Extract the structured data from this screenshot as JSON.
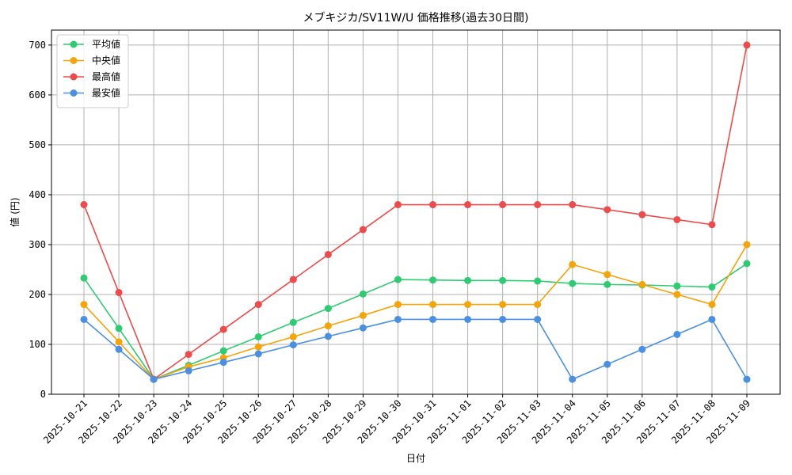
{
  "chart_data": {
    "type": "line",
    "title": "メブキジカ/SV11W/U 価格推移(過去30日間)",
    "xlabel": "日付",
    "ylabel": "値 (円)",
    "ylim": [
      0,
      730
    ],
    "yticks": [
      0,
      100,
      200,
      300,
      400,
      500,
      600,
      700
    ],
    "grid": true,
    "legend_position": "top-left",
    "categories": [
      "2025-10-21",
      "2025-10-22",
      "2025-10-23",
      "2025-10-24",
      "2025-10-25",
      "2025-10-26",
      "2025-10-27",
      "2025-10-28",
      "2025-10-29",
      "2025-10-30",
      "2025-10-31",
      "2025-11-01",
      "2025-11-02",
      "2025-11-03",
      "2025-11-04",
      "2025-11-05",
      "2025-11-06",
      "2025-11-07",
      "2025-11-08",
      "2025-11-09"
    ],
    "series": [
      {
        "name": "平均値",
        "color": "#2ecc71",
        "values": [
          233,
          132,
          30,
          58,
          87,
          115,
          144,
          172,
          201,
          230,
          229,
          228,
          228,
          227,
          222,
          220,
          219,
          217,
          215,
          262
        ]
      },
      {
        "name": "中央値",
        "color": "#f5a40a",
        "values": [
          180,
          105,
          30,
          55,
          73,
          95,
          115,
          137,
          158,
          180,
          180,
          180,
          180,
          180,
          260,
          240,
          220,
          200,
          180,
          300
        ]
      },
      {
        "name": "最高値",
        "color": "#ee4c4c",
        "values": [
          380,
          204,
          30,
          80,
          130,
          180,
          230,
          280,
          330,
          380,
          380,
          380,
          380,
          380,
          380,
          370,
          360,
          350,
          340,
          700
        ]
      },
      {
        "name": "最安値",
        "color": "#4a90e2",
        "values": [
          150,
          90,
          30,
          47,
          64,
          81,
          99,
          116,
          133,
          150,
          150,
          150,
          150,
          150,
          30,
          60,
          90,
          120,
          150,
          30
        ]
      }
    ]
  }
}
